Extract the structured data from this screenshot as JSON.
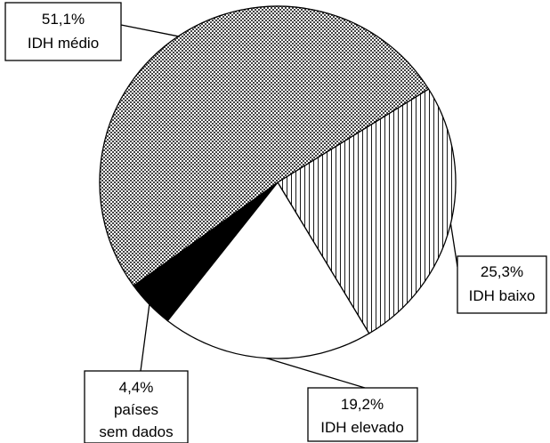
{
  "chart_data": {
    "type": "pie",
    "slices": [
      {
        "value": 25.3,
        "pct_label": "25,3%",
        "name": "IDH baixo",
        "pattern": "vertical-lines"
      },
      {
        "value": 19.2,
        "pct_label": "19,2%",
        "name": "IDH elevado",
        "pattern": "white"
      },
      {
        "value": 4.4,
        "pct_label": "4,4%",
        "name_lines": [
          "países",
          "sem dados"
        ],
        "pattern": "black"
      },
      {
        "value": 51.1,
        "pct_label": "51,1%",
        "name": "IDH médio",
        "pattern": "dotted-gray"
      }
    ],
    "colors": {
      "stroke": "#000000",
      "fill_white": "#ffffff",
      "fill_black": "#000000",
      "dot_gray": "#555555"
    },
    "legend": "none",
    "grid": false
  }
}
